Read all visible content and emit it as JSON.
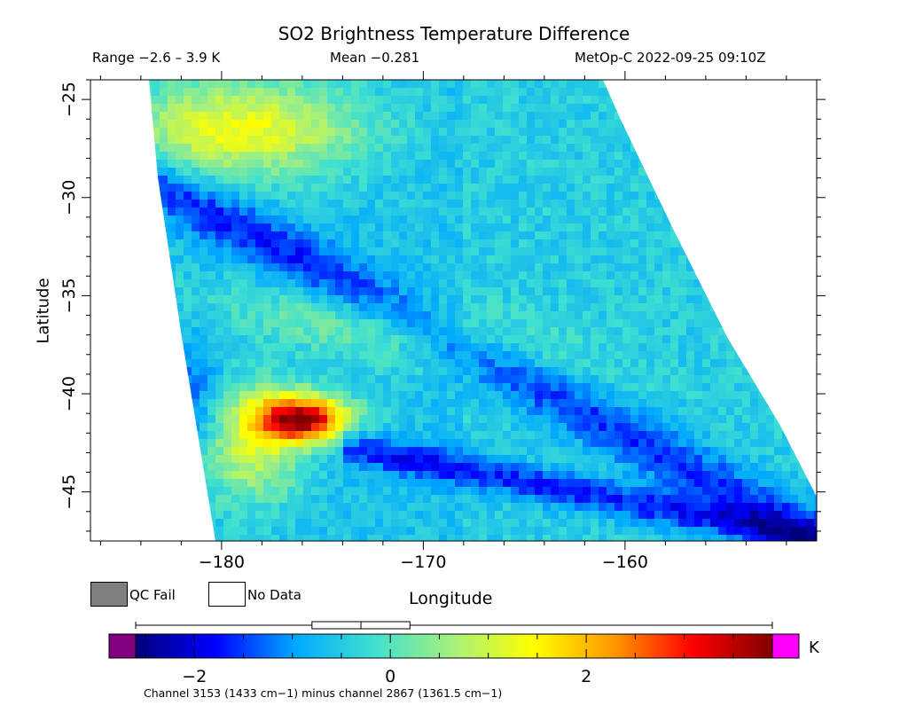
{
  "chart_data": {
    "type": "heatmap",
    "title": "SO2 Brightness Temperature Difference",
    "range_text": "Range −2.6 – 3.9 K",
    "mean_text": "Mean −0.281",
    "source_text": "MetOp-C 2022-09-25 09:10Z",
    "xlabel": "Longitude",
    "ylabel": "Latitude",
    "x_ticks": [
      -180,
      -170,
      -160
    ],
    "y_ticks": [
      -25,
      -30,
      -35,
      -40,
      -45
    ],
    "xlim": [
      -186.5,
      -150.5
    ],
    "ylim": [
      -47.5,
      -24
    ],
    "colorbar": {
      "units": "K",
      "ticks": [
        -2,
        0,
        2
      ],
      "range": [
        -2.6,
        3.9
      ],
      "colors": [
        "#00007a",
        "#0000ff",
        "#00a8ff",
        "#40e0d0",
        "#a8f07a",
        "#ffff00",
        "#ff9900",
        "#ff0000",
        "#800000"
      ],
      "underflow_color": "#7f007f",
      "overflow_color": "#ff00ff",
      "boxplot": {
        "min": -2.6,
        "q1": -0.8,
        "median": -0.3,
        "q3": 0.2,
        "max": 3.9
      },
      "caption": "Channel 3153 (1433 cm−1) minus channel 2867 (1361.5 cm−1)"
    },
    "legend": {
      "qc_fail": "QC Fail",
      "no_data": "No Data",
      "qc_fail_color": "#808080"
    }
  }
}
